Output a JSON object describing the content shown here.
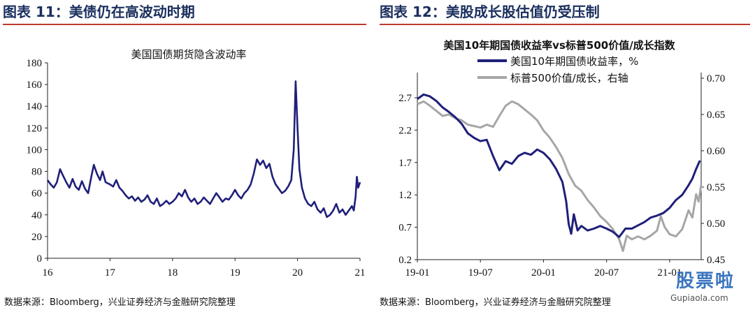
{
  "panels": [
    {
      "header": "图表 11：美债仍在高波动时期",
      "source": "数据来源：Bloomberg，兴业证券经济与金融研究院整理"
    },
    {
      "header": "图表 12：美股成长股估值仍受压制",
      "source": "数据来源：Bloomberg，兴业证券经济与金融研究院整理"
    }
  ],
  "watermark": {
    "text": "股票啦",
    "url": "Gupiaola.com"
  },
  "chart_data": [
    {
      "type": "line",
      "title": "美国国债期货隐含波动率",
      "xlabel": "",
      "ylabel": "",
      "x_ticks": [
        "16",
        "17",
        "18",
        "19",
        "20",
        "21"
      ],
      "y_ticks": [
        0,
        20,
        40,
        60,
        80,
        100,
        120,
        140,
        160,
        180
      ],
      "ylim": [
        0,
        180
      ],
      "xlim": [
        2016.0,
        2021.0
      ],
      "grid": false,
      "series": [
        {
          "color": "#1f1f7a",
          "points": [
            [
              2016.0,
              72
            ],
            [
              2016.05,
              68
            ],
            [
              2016.1,
              65
            ],
            [
              2016.15,
              70
            ],
            [
              2016.2,
              82
            ],
            [
              2016.24,
              77
            ],
            [
              2016.3,
              70
            ],
            [
              2016.35,
              65
            ],
            [
              2016.4,
              73
            ],
            [
              2016.45,
              66
            ],
            [
              2016.5,
              63
            ],
            [
              2016.55,
              71
            ],
            [
              2016.6,
              64
            ],
            [
              2016.65,
              60
            ],
            [
              2016.7,
              75
            ],
            [
              2016.74,
              86
            ],
            [
              2016.79,
              78
            ],
            [
              2016.84,
              72
            ],
            [
              2016.88,
              80
            ],
            [
              2016.93,
              70
            ],
            [
              2017.0,
              68
            ],
            [
              2017.05,
              66
            ],
            [
              2017.1,
              72
            ],
            [
              2017.15,
              65
            ],
            [
              2017.2,
              62
            ],
            [
              2017.25,
              58
            ],
            [
              2017.3,
              55
            ],
            [
              2017.35,
              57
            ],
            [
              2017.4,
              53
            ],
            [
              2017.45,
              56
            ],
            [
              2017.5,
              52
            ],
            [
              2017.55,
              54
            ],
            [
              2017.6,
              58
            ],
            [
              2017.65,
              52
            ],
            [
              2017.7,
              50
            ],
            [
              2017.75,
              55
            ],
            [
              2017.8,
              48
            ],
            [
              2017.85,
              50
            ],
            [
              2017.9,
              53
            ],
            [
              2017.95,
              50
            ],
            [
              2018.0,
              52
            ],
            [
              2018.05,
              55
            ],
            [
              2018.1,
              60
            ],
            [
              2018.15,
              57
            ],
            [
              2018.2,
              63
            ],
            [
              2018.25,
              56
            ],
            [
              2018.3,
              52
            ],
            [
              2018.35,
              55
            ],
            [
              2018.4,
              50
            ],
            [
              2018.45,
              52
            ],
            [
              2018.5,
              56
            ],
            [
              2018.55,
              53
            ],
            [
              2018.6,
              50
            ],
            [
              2018.65,
              55
            ],
            [
              2018.7,
              60
            ],
            [
              2018.75,
              56
            ],
            [
              2018.8,
              52
            ],
            [
              2018.85,
              55
            ],
            [
              2018.9,
              54
            ],
            [
              2018.95,
              58
            ],
            [
              2019.0,
              63
            ],
            [
              2019.05,
              58
            ],
            [
              2019.1,
              55
            ],
            [
              2019.15,
              60
            ],
            [
              2019.2,
              63
            ],
            [
              2019.25,
              68
            ],
            [
              2019.3,
              78
            ],
            [
              2019.35,
              91
            ],
            [
              2019.4,
              86
            ],
            [
              2019.45,
              90
            ],
            [
              2019.5,
              83
            ],
            [
              2019.55,
              87
            ],
            [
              2019.6,
              75
            ],
            [
              2019.65,
              68
            ],
            [
              2019.7,
              64
            ],
            [
              2019.75,
              60
            ],
            [
              2019.8,
              62
            ],
            [
              2019.85,
              66
            ],
            [
              2019.9,
              72
            ],
            [
              2019.94,
              100
            ],
            [
              2019.97,
              163
            ],
            [
              2020.0,
              120
            ],
            [
              2020.03,
              82
            ],
            [
              2020.07,
              65
            ],
            [
              2020.12,
              55
            ],
            [
              2020.17,
              50
            ],
            [
              2020.22,
              48
            ],
            [
              2020.27,
              52
            ],
            [
              2020.32,
              45
            ],
            [
              2020.37,
              42
            ],
            [
              2020.42,
              46
            ],
            [
              2020.47,
              38
            ],
            [
              2020.52,
              40
            ],
            [
              2020.57,
              44
            ],
            [
              2020.62,
              50
            ],
            [
              2020.67,
              42
            ],
            [
              2020.72,
              45
            ],
            [
              2020.77,
              40
            ],
            [
              2020.82,
              44
            ],
            [
              2020.87,
              48
            ],
            [
              2020.9,
              44
            ],
            [
              2020.93,
              57
            ],
            [
              2020.95,
              75
            ],
            [
              2020.97,
              65
            ],
            [
              2021.0,
              70
            ]
          ]
        }
      ]
    },
    {
      "type": "line",
      "title": "美国10年期国债收益率vs标普500价值/成长指数",
      "x_ticks": [
        "19-01",
        "19-07",
        "20-01",
        "20-07",
        "21-01"
      ],
      "xlim": [
        2019.0,
        2021.25
      ],
      "y_left_ticks": [
        "2.7",
        "2.2",
        "1.7",
        "1.2",
        "0.7",
        "0.2"
      ],
      "y_left_lim": [
        0.2,
        2.95
      ],
      "y_right_ticks": [
        "0.70",
        "0.65",
        "0.60",
        "0.55",
        "0.50",
        "0.45"
      ],
      "y_right_lim": [
        0.45,
        0.7
      ],
      "legend_position": "top",
      "grid": false,
      "series": [
        {
          "name": "美国10年期国债收益率，%",
          "axis": "left",
          "color": "#1f1f7a",
          "points": [
            [
              2019.0,
              2.68
            ],
            [
              2019.05,
              2.75
            ],
            [
              2019.1,
              2.72
            ],
            [
              2019.15,
              2.65
            ],
            [
              2019.2,
              2.55
            ],
            [
              2019.25,
              2.48
            ],
            [
              2019.3,
              2.4
            ],
            [
              2019.35,
              2.3
            ],
            [
              2019.4,
              2.15
            ],
            [
              2019.45,
              2.08
            ],
            [
              2019.5,
              2.03
            ],
            [
              2019.55,
              2.05
            ],
            [
              2019.6,
              1.8
            ],
            [
              2019.65,
              1.58
            ],
            [
              2019.7,
              1.72
            ],
            [
              2019.75,
              1.68
            ],
            [
              2019.8,
              1.8
            ],
            [
              2019.85,
              1.85
            ],
            [
              2019.9,
              1.82
            ],
            [
              2019.95,
              1.9
            ],
            [
              2020.0,
              1.85
            ],
            [
              2020.05,
              1.75
            ],
            [
              2020.1,
              1.6
            ],
            [
              2020.15,
              1.4
            ],
            [
              2020.18,
              1.1
            ],
            [
              2020.2,
              0.75
            ],
            [
              2020.22,
              0.6
            ],
            [
              2020.24,
              0.9
            ],
            [
              2020.27,
              0.65
            ],
            [
              2020.3,
              0.72
            ],
            [
              2020.35,
              0.65
            ],
            [
              2020.4,
              0.68
            ],
            [
              2020.45,
              0.72
            ],
            [
              2020.5,
              0.68
            ],
            [
              2020.55,
              0.63
            ],
            [
              2020.6,
              0.55
            ],
            [
              2020.65,
              0.68
            ],
            [
              2020.7,
              0.68
            ],
            [
              2020.75,
              0.73
            ],
            [
              2020.8,
              0.78
            ],
            [
              2020.85,
              0.85
            ],
            [
              2020.9,
              0.88
            ],
            [
              2020.95,
              0.92
            ],
            [
              2021.0,
              1.0
            ],
            [
              2021.05,
              1.12
            ],
            [
              2021.1,
              1.2
            ],
            [
              2021.15,
              1.35
            ],
            [
              2021.18,
              1.45
            ],
            [
              2021.21,
              1.6
            ],
            [
              2021.24,
              1.73
            ]
          ]
        },
        {
          "name": "标普500价值/成长，右轴",
          "axis": "right",
          "color": "#a6a6a6",
          "points": [
            [
              2019.0,
              0.664
            ],
            [
              2019.05,
              0.668
            ],
            [
              2019.1,
              0.662
            ],
            [
              2019.15,
              0.655
            ],
            [
              2019.2,
              0.648
            ],
            [
              2019.25,
              0.65
            ],
            [
              2019.3,
              0.645
            ],
            [
              2019.35,
              0.642
            ],
            [
              2019.4,
              0.636
            ],
            [
              2019.45,
              0.634
            ],
            [
              2019.5,
              0.632
            ],
            [
              2019.55,
              0.636
            ],
            [
              2019.6,
              0.633
            ],
            [
              2019.65,
              0.648
            ],
            [
              2019.7,
              0.662
            ],
            [
              2019.75,
              0.668
            ],
            [
              2019.8,
              0.664
            ],
            [
              2019.85,
              0.657
            ],
            [
              2019.9,
              0.65
            ],
            [
              2019.95,
              0.642
            ],
            [
              2020.0,
              0.628
            ],
            [
              2020.05,
              0.618
            ],
            [
              2020.1,
              0.605
            ],
            [
              2020.15,
              0.59
            ],
            [
              2020.2,
              0.568
            ],
            [
              2020.25,
              0.552
            ],
            [
              2020.3,
              0.545
            ],
            [
              2020.35,
              0.532
            ],
            [
              2020.4,
              0.522
            ],
            [
              2020.45,
              0.51
            ],
            [
              2020.5,
              0.502
            ],
            [
              2020.55,
              0.492
            ],
            [
              2020.6,
              0.478
            ],
            [
              2020.63,
              0.462
            ],
            [
              2020.66,
              0.483
            ],
            [
              2020.7,
              0.478
            ],
            [
              2020.75,
              0.482
            ],
            [
              2020.8,
              0.478
            ],
            [
              2020.85,
              0.483
            ],
            [
              2020.9,
              0.49
            ],
            [
              2020.93,
              0.51
            ],
            [
              2020.96,
              0.495
            ],
            [
              2021.0,
              0.485
            ],
            [
              2021.05,
              0.482
            ],
            [
              2021.1,
              0.492
            ],
            [
              2021.15,
              0.518
            ],
            [
              2021.18,
              0.508
            ],
            [
              2021.21,
              0.54
            ],
            [
              2021.23,
              0.53
            ],
            [
              2021.25,
              0.553
            ]
          ]
        }
      ]
    }
  ]
}
